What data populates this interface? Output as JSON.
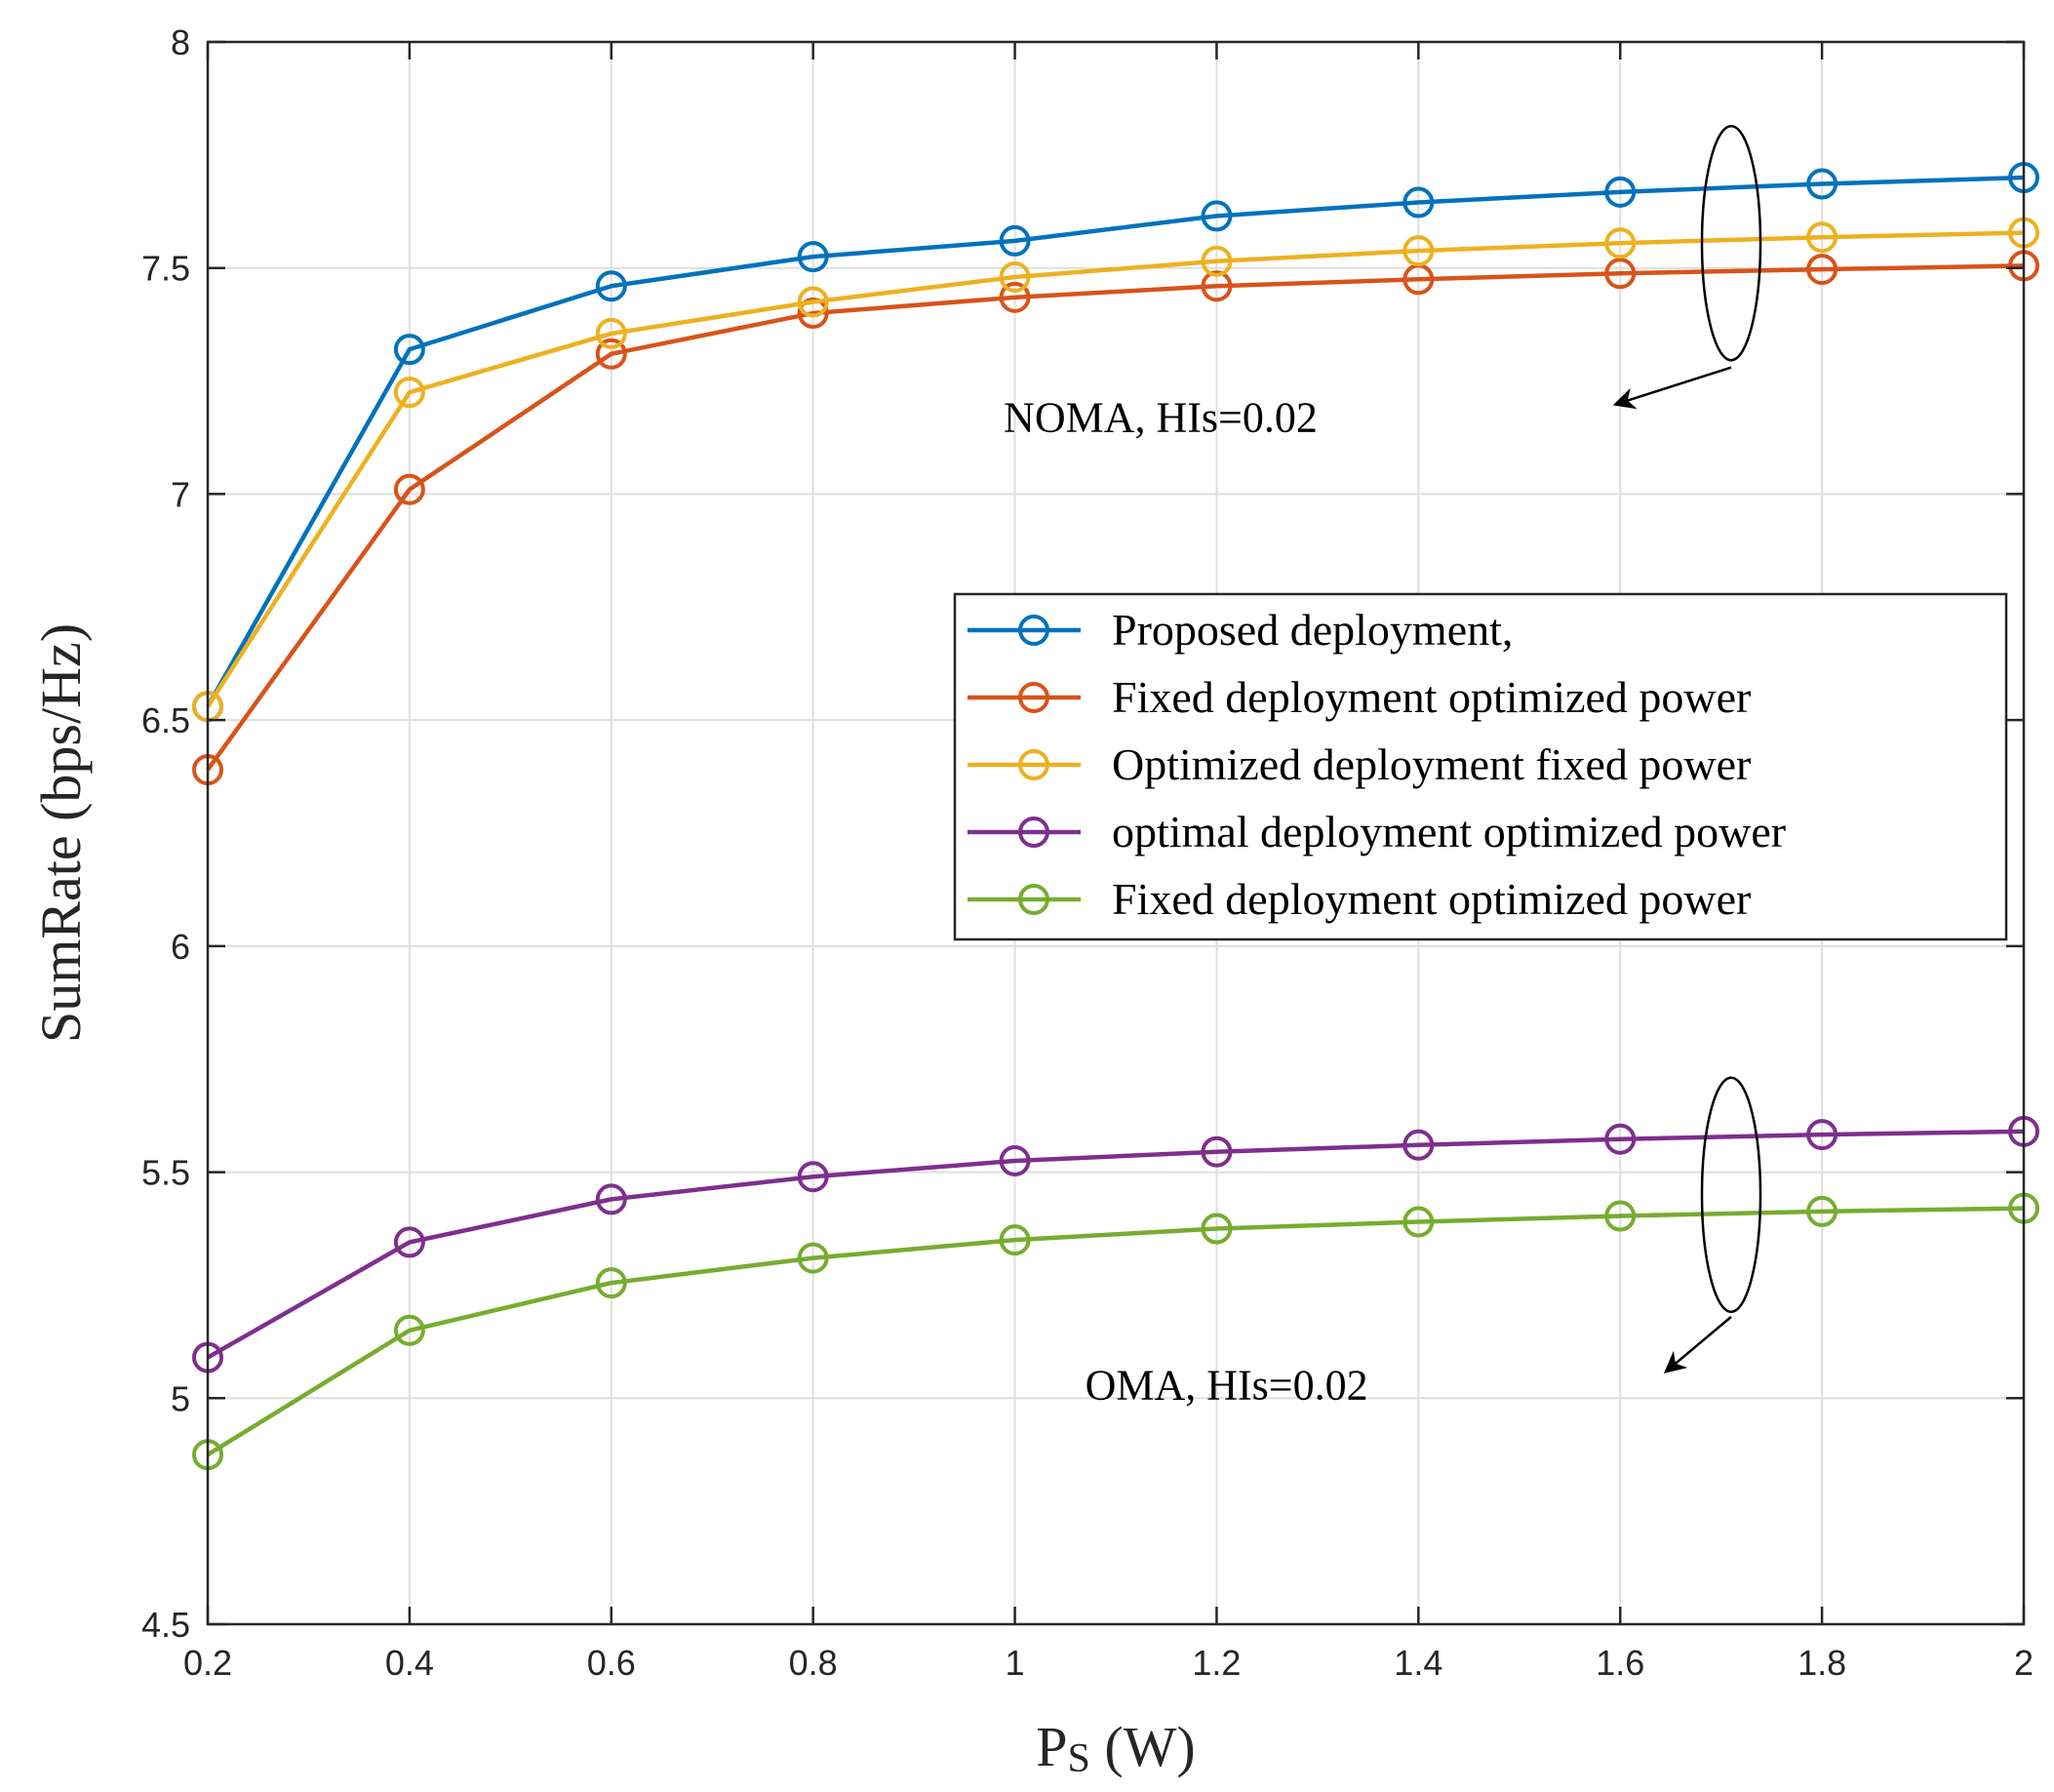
{
  "chart_data": {
    "type": "line",
    "title": "",
    "xlabel": "P",
    "xlabel_sub": "S",
    "xlabel_unit": " (W)",
    "ylabel": "SumRate (bps/Hz)",
    "xlim": [
      0.2,
      2
    ],
    "ylim": [
      4.5,
      8
    ],
    "grid": true,
    "x": [
      0.2,
      0.4,
      0.6,
      0.8,
      1.0,
      1.2,
      1.4,
      1.6,
      1.8,
      2.0
    ],
    "x_tick_labels": [
      "0.2",
      "0.4",
      "0.6",
      "0.8",
      "1",
      "1.2",
      "1.4",
      "1.6",
      "1.8",
      "2"
    ],
    "y_ticks": [
      4.5,
      5,
      5.5,
      6,
      6.5,
      7,
      7.5,
      8
    ],
    "y_tick_labels": [
      "4.5",
      "5",
      "5.5",
      "6",
      "6.5",
      "7",
      "7.5",
      "8"
    ],
    "legend_position": "center-right",
    "series": [
      {
        "name": "Proposed deployment,",
        "color": "#0072BD",
        "values": [
          6.53,
          7.32,
          7.46,
          7.525,
          7.56,
          7.615,
          7.645,
          7.668,
          7.686,
          7.7
        ]
      },
      {
        "name": "Fixed deployment optimized power",
        "color": "#D95319",
        "values": [
          6.39,
          7.01,
          7.31,
          7.4,
          7.435,
          7.46,
          7.475,
          7.488,
          7.497,
          7.505
        ]
      },
      {
        "name": "Optimized deployment fixed power",
        "color": "#EDB120",
        "values": [
          6.53,
          7.225,
          7.355,
          7.425,
          7.48,
          7.515,
          7.538,
          7.555,
          7.568,
          7.578
        ]
      },
      {
        "name": "optimal deployment optimized power",
        "color": "#7E2F8E",
        "values": [
          5.09,
          5.345,
          5.44,
          5.49,
          5.525,
          5.545,
          5.56,
          5.573,
          5.583,
          5.59
        ]
      },
      {
        "name": "Fixed deployment optimized power",
        "color": "#77AC30",
        "values": [
          4.875,
          5.15,
          5.255,
          5.31,
          5.35,
          5.375,
          5.39,
          5.403,
          5.413,
          5.42
        ]
      }
    ],
    "annotations": [
      {
        "text": "NOMA, HIs=0.02",
        "ellipse_center": [
          1.71,
          7.555
        ],
        "target_x": 1.71,
        "target_y": 7.28,
        "text_x": 1.3,
        "text_y": 7.17
      },
      {
        "text": "OMA, HIs=0.02",
        "ellipse_center": [
          1.71,
          5.45
        ],
        "target_x": 1.71,
        "target_y": 5.18,
        "text_x": 1.35,
        "text_y": 5.03
      }
    ]
  }
}
